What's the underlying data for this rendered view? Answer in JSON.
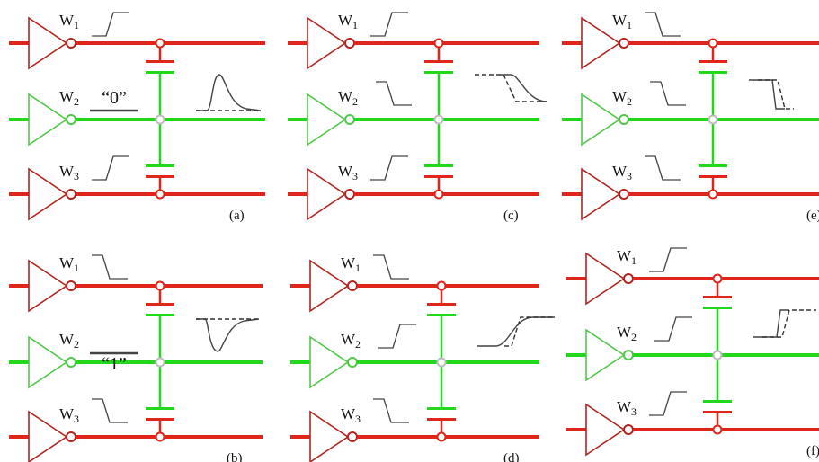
{
  "colors": {
    "aggressor": "#e0251b",
    "aggressor_dark": "#b2241f",
    "victim": "#22d81b",
    "victim_dark": "#52c84a",
    "node_fill": "#ffffff",
    "node_victim": "#bdbdbd",
    "waveform": "#444444",
    "label": "#111111"
  },
  "wire_labels": {
    "w1": "W",
    "w2": "W",
    "w3": "W",
    "s1": "1",
    "s2": "2",
    "s3": "3"
  },
  "panels": [
    {
      "id": "a",
      "caption": "(a)",
      "victim_state": "“0”",
      "w1": "rise",
      "w2": "flat",
      "w3": "rise",
      "response": "positive-glitch"
    },
    {
      "id": "b",
      "caption": "(b)",
      "victim_state": "“1”",
      "w1": "fall",
      "w2": "flat",
      "w3": "fall",
      "response": "negative-glitch"
    },
    {
      "id": "c",
      "caption": "(c)",
      "victim_state": "",
      "w1": "rise",
      "w2": "fall",
      "w3": "rise",
      "response": "slow-fall"
    },
    {
      "id": "d",
      "caption": "(d)",
      "victim_state": "",
      "w1": "fall",
      "w2": "rise",
      "w3": "fall",
      "response": "slow-rise"
    },
    {
      "id": "e",
      "caption": "(e)",
      "victim_state": "",
      "w1": "fall",
      "w2": "fall",
      "w3": "fall",
      "response": "fast-fall"
    },
    {
      "id": "f",
      "caption": "(f)",
      "victim_state": "",
      "w1": "rise",
      "w2": "rise",
      "w3": "rise",
      "response": "fast-rise"
    }
  ]
}
